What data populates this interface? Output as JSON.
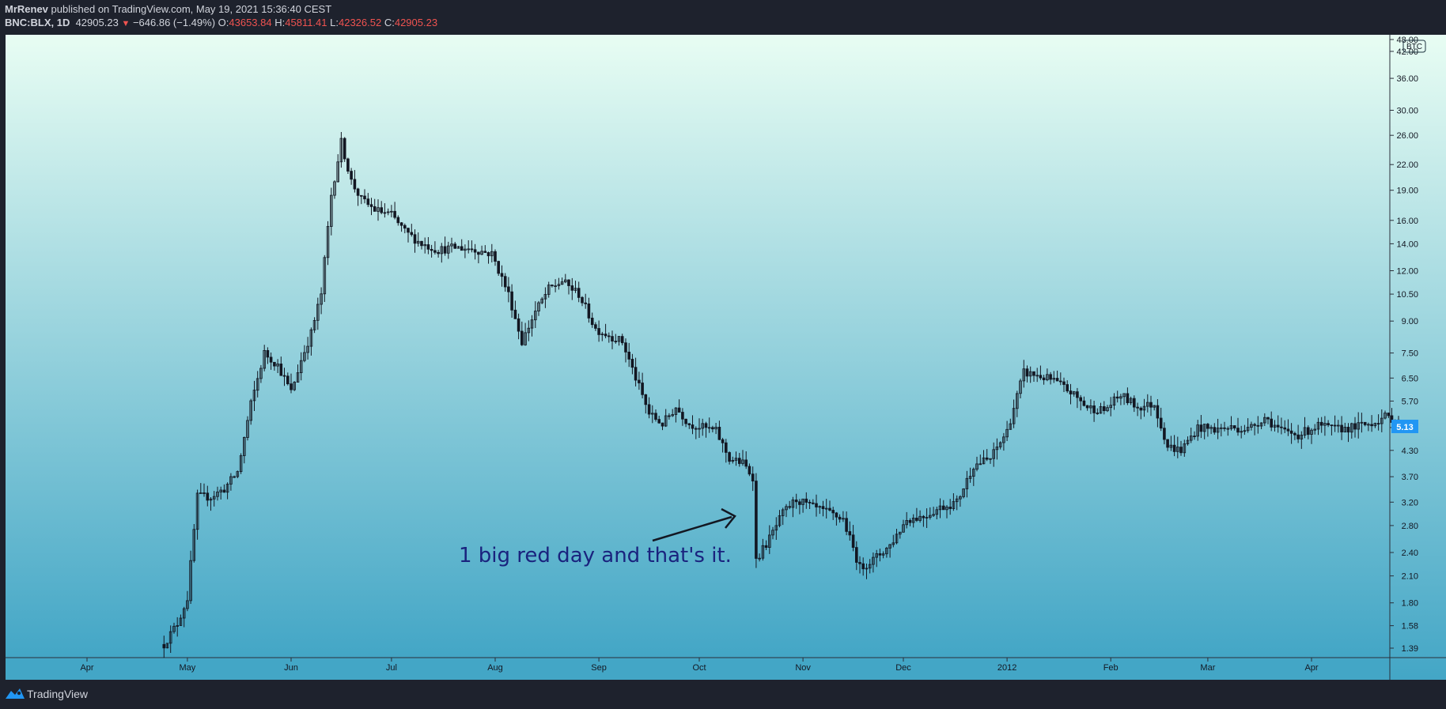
{
  "header": {
    "author": "MrRenev",
    "published_text": "published on TradingView.com, May 19, 2021 15:36:40 CEST",
    "symbol": "BNC:BLX, 1D",
    "last_price": "42905.23",
    "change": "−646.86 (−1.49%)",
    "open_label": "O:",
    "open_value": "43653.84",
    "high_label": "H:",
    "high_value": "45811.41",
    "low_label": "L:",
    "low_value": "42326.52",
    "close_label": "C:",
    "close_value": "42905.23"
  },
  "footer": {
    "brand": "TradingView"
  },
  "colors": {
    "background": "#1e222d",
    "plot_top": "#e8fdf3",
    "plot_bottom": "#43a6c6",
    "candles": "#131722",
    "annotation": "#1a237e",
    "price_badge": "#2196f3"
  },
  "chart_data": {
    "type": "candlestick",
    "scale": "log",
    "price_unit": "BTC",
    "last_value_label": "5.13",
    "y_ticks": [
      "48.00",
      "42.00",
      "36.00",
      "30.00",
      "26.00",
      "22.00",
      "19.00",
      "16.00",
      "14.00",
      "12.00",
      "10.50",
      "9.00",
      "7.50",
      "6.50",
      "5.70",
      "4.90",
      "4.30",
      "3.70",
      "3.20",
      "2.80",
      "2.40",
      "2.10",
      "1.80",
      "1.58",
      "1.39"
    ],
    "x_ticks": [
      "Apr",
      "May",
      "Jun",
      "Jul",
      "Aug",
      "Sep",
      "Oct",
      "Nov",
      "Dec",
      "2012",
      "Feb",
      "Mar",
      "Apr"
    ],
    "annotation_text": "1 big red day and that's it.",
    "approx_closes": [
      {
        "date": "2011-04-24",
        "close": 1.42
      },
      {
        "date": "2011-04-28",
        "close": 1.6
      },
      {
        "date": "2011-05-01",
        "close": 1.85
      },
      {
        "date": "2011-05-04",
        "close": 3.3
      },
      {
        "date": "2011-05-08",
        "close": 3.3
      },
      {
        "date": "2011-05-12",
        "close": 3.45
      },
      {
        "date": "2011-05-16",
        "close": 3.8
      },
      {
        "date": "2011-05-20",
        "close": 5.6
      },
      {
        "date": "2011-05-24",
        "close": 7.5
      },
      {
        "date": "2011-05-28",
        "close": 7.0
      },
      {
        "date": "2011-06-01",
        "close": 6.0
      },
      {
        "date": "2011-06-04",
        "close": 7.2
      },
      {
        "date": "2011-06-07",
        "close": 8.4
      },
      {
        "date": "2011-06-10",
        "close": 10.5
      },
      {
        "date": "2011-06-13",
        "close": 18.5
      },
      {
        "date": "2011-06-16",
        "close": 25.0
      },
      {
        "date": "2011-06-19",
        "close": 20.0
      },
      {
        "date": "2011-06-22",
        "close": 18.0
      },
      {
        "date": "2011-06-26",
        "close": 17.0
      },
      {
        "date": "2011-07-01",
        "close": 16.5
      },
      {
        "date": "2011-07-05",
        "close": 15.0
      },
      {
        "date": "2011-07-10",
        "close": 14.0
      },
      {
        "date": "2011-07-15",
        "close": 13.5
      },
      {
        "date": "2011-07-20",
        "close": 13.7
      },
      {
        "date": "2011-07-25",
        "close": 13.6
      },
      {
        "date": "2011-07-31",
        "close": 13.2
      },
      {
        "date": "2011-08-05",
        "close": 10.5
      },
      {
        "date": "2011-08-09",
        "close": 8.0
      },
      {
        "date": "2011-08-13",
        "close": 9.5
      },
      {
        "date": "2011-08-17",
        "close": 10.8
      },
      {
        "date": "2011-08-21",
        "close": 11.3
      },
      {
        "date": "2011-08-26",
        "close": 10.5
      },
      {
        "date": "2011-08-31",
        "close": 8.6
      },
      {
        "date": "2011-09-04",
        "close": 8.3
      },
      {
        "date": "2011-09-08",
        "close": 8.0
      },
      {
        "date": "2011-09-12",
        "close": 6.5
      },
      {
        "date": "2011-09-16",
        "close": 5.3
      },
      {
        "date": "2011-09-20",
        "close": 5.0
      },
      {
        "date": "2011-09-24",
        "close": 5.5
      },
      {
        "date": "2011-09-28",
        "close": 5.0
      },
      {
        "date": "2011-10-02",
        "close": 4.9
      },
      {
        "date": "2011-10-06",
        "close": 4.8
      },
      {
        "date": "2011-10-10",
        "close": 4.1
      },
      {
        "date": "2011-10-14",
        "close": 4.0
      },
      {
        "date": "2011-10-17",
        "close": 3.7
      },
      {
        "date": "2011-10-18",
        "close": 2.3
      },
      {
        "date": "2011-10-22",
        "close": 2.6
      },
      {
        "date": "2011-10-26",
        "close": 3.0
      },
      {
        "date": "2011-10-30",
        "close": 3.25
      },
      {
        "date": "2011-11-04",
        "close": 3.1
      },
      {
        "date": "2011-11-09",
        "close": 3.0
      },
      {
        "date": "2011-11-13",
        "close": 2.9
      },
      {
        "date": "2011-11-18",
        "close": 2.2
      },
      {
        "date": "2011-11-22",
        "close": 2.3
      },
      {
        "date": "2011-11-27",
        "close": 2.5
      },
      {
        "date": "2011-12-02",
        "close": 2.9
      },
      {
        "date": "2011-12-07",
        "close": 2.95
      },
      {
        "date": "2011-12-12",
        "close": 3.1
      },
      {
        "date": "2011-12-17",
        "close": 3.2
      },
      {
        "date": "2011-12-22",
        "close": 3.95
      },
      {
        "date": "2011-12-27",
        "close": 4.1
      },
      {
        "date": "2012-01-01",
        "close": 4.8
      },
      {
        "date": "2012-01-06",
        "close": 6.7
      },
      {
        "date": "2012-01-10",
        "close": 6.6
      },
      {
        "date": "2012-01-15",
        "close": 6.4
      },
      {
        "date": "2012-01-20",
        "close": 6.0
      },
      {
        "date": "2012-01-25",
        "close": 5.5
      },
      {
        "date": "2012-01-30",
        "close": 5.4
      },
      {
        "date": "2012-02-04",
        "close": 5.9
      },
      {
        "date": "2012-02-09",
        "close": 5.5
      },
      {
        "date": "2012-02-14",
        "close": 5.6
      },
      {
        "date": "2012-02-18",
        "close": 4.4
      },
      {
        "date": "2012-02-22",
        "close": 4.3
      },
      {
        "date": "2012-02-27",
        "close": 4.9
      },
      {
        "date": "2012-03-03",
        "close": 4.85
      },
      {
        "date": "2012-03-08",
        "close": 4.9
      },
      {
        "date": "2012-03-13",
        "close": 4.85
      },
      {
        "date": "2012-03-18",
        "close": 5.2
      },
      {
        "date": "2012-03-23",
        "close": 4.8
      },
      {
        "date": "2012-03-28",
        "close": 4.7
      },
      {
        "date": "2012-04-03",
        "close": 4.95
      },
      {
        "date": "2012-04-08",
        "close": 4.85
      },
      {
        "date": "2012-04-13",
        "close": 4.9
      },
      {
        "date": "2012-04-18",
        "close": 5.0
      },
      {
        "date": "2012-04-23",
        "close": 5.2
      },
      {
        "date": "2012-04-27",
        "close": 5.13
      }
    ]
  }
}
